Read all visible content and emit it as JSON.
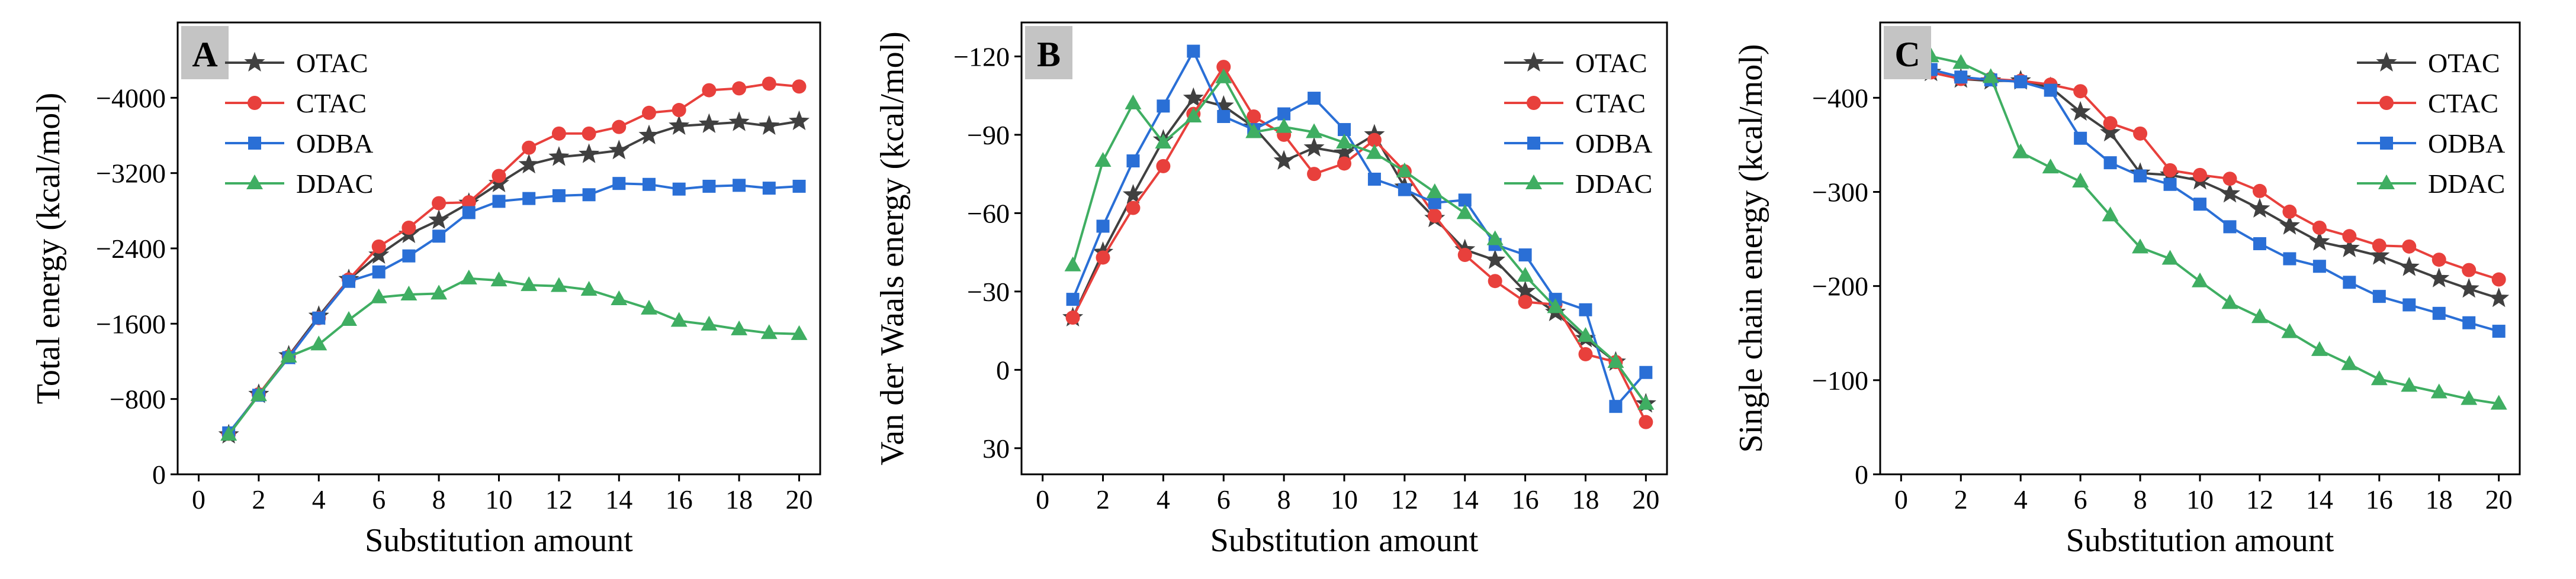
{
  "chart_data": [
    {
      "type": "line",
      "panel_label": "A",
      "xlabel": "Substitution amount",
      "ylabel": "Total energy (kcal/mol)",
      "xlim": [
        -0.7,
        20.7
      ],
      "ylim": [
        0,
        -4800
      ],
      "xticks": [
        0,
        2,
        4,
        6,
        8,
        10,
        12,
        14,
        16,
        18,
        20
      ],
      "xtick_labels": [
        "0",
        "2",
        "4",
        "6",
        "8",
        "10",
        "12",
        "14",
        "16",
        "18",
        "20"
      ],
      "yticks": [
        0,
        -800,
        -1600,
        -2400,
        -3200,
        -4000
      ],
      "ytick_labels": [
        "0",
        "−800",
        "−1600",
        "−2400",
        "−3200",
        "−4000"
      ],
      "legend_position": "top-left",
      "x": [
        1,
        2,
        3,
        4,
        5,
        6,
        7,
        8,
        9,
        10,
        11,
        12,
        13,
        14,
        15,
        16,
        17,
        18,
        19,
        20
      ],
      "series": [
        {
          "name": "OTAC",
          "color": "#404040",
          "marker": "star",
          "values": [
            -420,
            -850,
            -1260,
            -1680,
            -2070,
            -2330,
            -2550,
            -2700,
            -2880,
            -3090,
            -3290,
            -3370,
            -3400,
            -3440,
            -3600,
            -3700,
            -3720,
            -3740,
            -3700,
            -3750
          ]
        },
        {
          "name": "CTAC",
          "color": "#e8403c",
          "marker": "circle",
          "values": [
            -430,
            -850,
            -1250,
            -1660,
            -2070,
            -2420,
            -2620,
            -2880,
            -2890,
            -3170,
            -3470,
            -3620,
            -3620,
            -3690,
            -3840,
            -3870,
            -4080,
            -4100,
            -4150,
            -4120
          ]
        },
        {
          "name": "ODBA",
          "color": "#2a6fd6",
          "marker": "square",
          "values": [
            -440,
            -840,
            -1240,
            -1660,
            -2050,
            -2150,
            -2320,
            -2530,
            -2780,
            -2900,
            -2930,
            -2960,
            -2970,
            -3090,
            -3080,
            -3030,
            -3060,
            -3070,
            -3040,
            -3060
          ]
        },
        {
          "name": "DDAC",
          "color": "#3fae62",
          "marker": "triangle",
          "values": [
            -420,
            -840,
            -1250,
            -1380,
            -1640,
            -1880,
            -1910,
            -1920,
            -2080,
            -2060,
            -2010,
            -2000,
            -1960,
            -1860,
            -1760,
            -1630,
            -1590,
            -1540,
            -1500,
            -1490
          ]
        }
      ]
    },
    {
      "type": "line",
      "panel_label": "B",
      "xlabel": "Substitution amount",
      "ylabel": "Van der Waals energy (kcal/mol)",
      "xlim": [
        -0.7,
        20.7
      ],
      "ylim": [
        40,
        -133
      ],
      "xticks": [
        0,
        2,
        4,
        6,
        8,
        10,
        12,
        14,
        16,
        18,
        20
      ],
      "xtick_labels": [
        "0",
        "2",
        "4",
        "6",
        "8",
        "10",
        "12",
        "14",
        "16",
        "18",
        "20"
      ],
      "yticks": [
        30,
        0,
        -30,
        -60,
        -90,
        -120
      ],
      "ytick_labels": [
        "30",
        "0",
        "−30",
        "−60",
        "−90",
        "−120"
      ],
      "legend_position": "top-right",
      "x": [
        1,
        2,
        3,
        4,
        5,
        6,
        7,
        8,
        9,
        10,
        11,
        12,
        13,
        14,
        15,
        16,
        17,
        18,
        19,
        20
      ],
      "series": [
        {
          "name": "OTAC",
          "color": "#404040",
          "marker": "star",
          "values": [
            -20,
            -45,
            -67,
            -88,
            -104,
            -101,
            -93,
            -80,
            -85,
            -83,
            -90,
            -70,
            -58,
            -46,
            -42,
            -30,
            -22,
            -12,
            -3,
            13
          ]
        },
        {
          "name": "CTAC",
          "color": "#e8403c",
          "marker": "circle",
          "values": [
            -20,
            -43,
            -62,
            -78,
            -98,
            -116,
            -97,
            -90,
            -75,
            -79,
            -88,
            -76,
            -59,
            -44,
            -34,
            -26,
            -25,
            -6,
            -3,
            20
          ]
        },
        {
          "name": "ODBA",
          "color": "#2a6fd6",
          "marker": "square",
          "values": [
            -27,
            -55,
            -80,
            -101,
            -122,
            -97,
            -92,
            -98,
            -104,
            -92,
            -73,
            -69,
            -64,
            -65,
            -48,
            -44,
            -27,
            -23,
            14,
            1
          ]
        },
        {
          "name": "DDAC",
          "color": "#3fae62",
          "marker": "triangle",
          "values": [
            -40,
            -80,
            -102,
            -87,
            -97,
            -112,
            -91,
            -93,
            -91,
            -87,
            -83,
            -76,
            -68,
            -60,
            -50,
            -36,
            -24,
            -13,
            -3,
            13
          ]
        }
      ]
    },
    {
      "type": "line",
      "panel_label": "C",
      "xlabel": "Substitution amount",
      "ylabel": "Single chain energy (kcal/mol)",
      "xlim": [
        -0.7,
        20.7
      ],
      "ylim": [
        0,
        -480
      ],
      "xticks": [
        0,
        2,
        4,
        6,
        8,
        10,
        12,
        14,
        16,
        18,
        20
      ],
      "xtick_labels": [
        "0",
        "2",
        "4",
        "6",
        "8",
        "10",
        "12",
        "14",
        "16",
        "18",
        "20"
      ],
      "yticks": [
        0,
        -100,
        -200,
        -300,
        -400
      ],
      "ytick_labels": [
        "0",
        "−100",
        "−200",
        "−300",
        "−400"
      ],
      "legend_position": "top-right",
      "x": [
        1,
        2,
        3,
        4,
        5,
        6,
        7,
        8,
        9,
        10,
        11,
        12,
        13,
        14,
        15,
        16,
        17,
        18,
        19,
        20
      ],
      "series": [
        {
          "name": "OTAC",
          "color": "#404040",
          "marker": "star",
          "values": [
            -427,
            -420,
            -418,
            -418,
            -411,
            -385,
            -363,
            -320,
            -318,
            -312,
            -298,
            -282,
            -264,
            -247,
            -240,
            -232,
            -220,
            -208,
            -197,
            -187
          ]
        },
        {
          "name": "CTAC",
          "color": "#e8403c",
          "marker": "circle",
          "values": [
            -427,
            -420,
            -420,
            -418,
            -414,
            -407,
            -373,
            -362,
            -323,
            -318,
            -314,
            -301,
            -279,
            -262,
            -253,
            -243,
            -242,
            -228,
            -217,
            -207
          ]
        },
        {
          "name": "ODBA",
          "color": "#2a6fd6",
          "marker": "square",
          "values": [
            -430,
            -422,
            -419,
            -417,
            -408,
            -357,
            -331,
            -317,
            -308,
            -287,
            -263,
            -245,
            -229,
            -221,
            -204,
            -189,
            -180,
            -171,
            -161,
            -152
          ]
        },
        {
          "name": "DDAC",
          "color": "#3fae62",
          "marker": "triangle",
          "values": [
            -444,
            -437,
            -422,
            -342,
            -326,
            -311,
            -275,
            -241,
            -229,
            -205,
            -182,
            -167,
            -151,
            -132,
            -117,
            -101,
            -94,
            -87,
            -80,
            -75
          ]
        }
      ]
    }
  ]
}
